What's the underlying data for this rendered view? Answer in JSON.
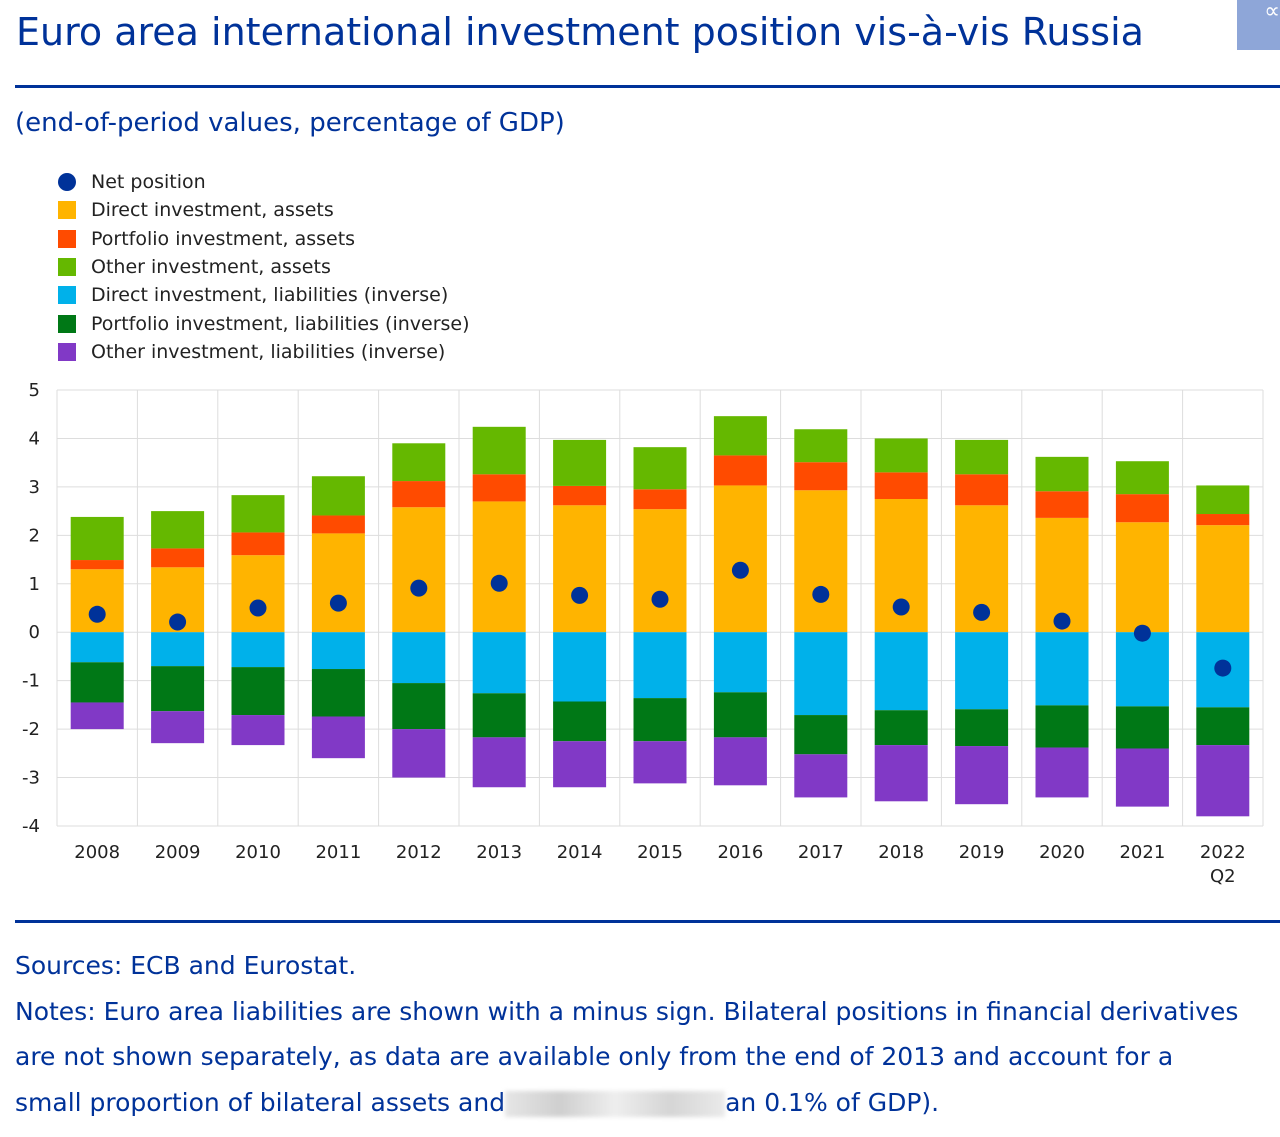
{
  "title": "Euro area international investment position vis-à-vis Russia",
  "subtitle": "(end-of-period values, percentage of GDP)",
  "share_icon": "share-icon",
  "chart_data": {
    "type": "bar",
    "stacked": true,
    "categories": [
      "2008",
      "2009",
      "2010",
      "2011",
      "2012",
      "2013",
      "2014",
      "2015",
      "2016",
      "2017",
      "2018",
      "2019",
      "2020",
      "2021",
      "2022\nQ2"
    ],
    "ylim": [
      -4,
      5
    ],
    "yticks": [
      5,
      4,
      3,
      2,
      1,
      0,
      -1,
      -2,
      -3,
      -4
    ],
    "grid": true,
    "legend_position": "top-left",
    "series": [
      {
        "name": "Direct investment, assets",
        "color": "#ffb400",
        "values": [
          1.3,
          1.34,
          1.59,
          2.04,
          2.58,
          2.7,
          2.62,
          2.54,
          3.03,
          2.93,
          2.75,
          2.62,
          2.36,
          2.27,
          2.21
        ]
      },
      {
        "name": "Portfolio investment, assets",
        "color": "#ff4b00",
        "values": [
          0.19,
          0.39,
          0.47,
          0.37,
          0.54,
          0.56,
          0.4,
          0.41,
          0.62,
          0.58,
          0.55,
          0.64,
          0.55,
          0.58,
          0.23
        ]
      },
      {
        "name": "Other investment, assets",
        "color": "#65b800",
        "values": [
          0.89,
          0.77,
          0.77,
          0.81,
          0.78,
          0.98,
          0.95,
          0.87,
          0.81,
          0.68,
          0.7,
          0.71,
          0.71,
          0.68,
          0.59
        ]
      },
      {
        "name": "Direct investment, liabilities (inverse)",
        "color": "#00b1ea",
        "values": [
          -0.62,
          -0.7,
          -0.72,
          -0.76,
          -1.05,
          -1.26,
          -1.43,
          -1.36,
          -1.24,
          -1.71,
          -1.61,
          -1.59,
          -1.51,
          -1.53,
          -1.55
        ]
      },
      {
        "name": "Portfolio investment, liabilities (inverse)",
        "color": "#007816",
        "values": [
          -0.83,
          -0.93,
          -0.99,
          -0.98,
          -0.95,
          -0.91,
          -0.82,
          -0.89,
          -0.93,
          -0.81,
          -0.72,
          -0.76,
          -0.87,
          -0.87,
          -0.78
        ]
      },
      {
        "name": "Other investment, liabilities (inverse)",
        "color": "#8139c6",
        "values": [
          -0.55,
          -0.66,
          -0.62,
          -0.86,
          -1.0,
          -1.03,
          -0.95,
          -0.87,
          -0.99,
          -0.89,
          -1.16,
          -1.2,
          -1.03,
          -1.2,
          -1.47
        ]
      }
    ],
    "net_position": {
      "name": "Net position",
      "color": "#003299",
      "values": [
        0.37,
        0.21,
        0.5,
        0.6,
        0.91,
        1.01,
        0.76,
        0.68,
        1.28,
        0.78,
        0.52,
        0.41,
        0.23,
        -0.02,
        -0.74
      ]
    }
  },
  "footer": {
    "sources": "Sources: ECB and Eurostat.",
    "notes_line1": "Notes: Euro area liabilities are shown with a minus sign. Bilateral positions in financial derivatives",
    "notes_line2": "are not shown separately, as data are available only from the end of 2013 and account for a",
    "notes_line3a": "small proportion of bilateral assets and",
    "notes_line3b": "an 0.1% of GDP)."
  }
}
